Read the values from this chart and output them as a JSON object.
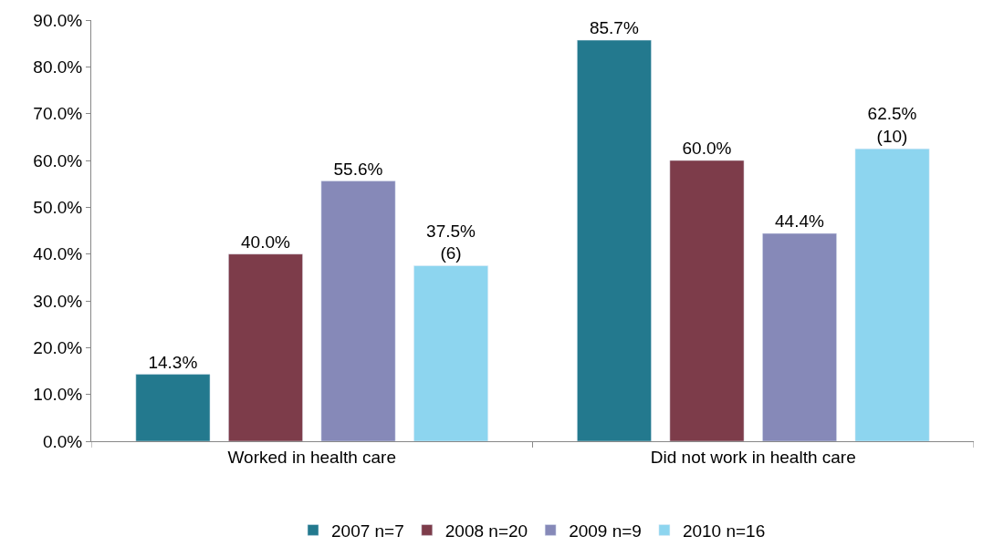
{
  "chart_data": {
    "type": "bar",
    "categories": [
      "Worked in health care",
      "Did not work in health care"
    ],
    "series": [
      {
        "name": "2007 n=7",
        "color": "#23798e",
        "values": [
          14.3,
          85.7
        ],
        "value_labels": [
          "14.3%",
          "85.7%"
        ]
      },
      {
        "name": "2008 n=20",
        "color": "#7d3c4a",
        "values": [
          40.0,
          60.0
        ],
        "value_labels": [
          "40.0%",
          "60.0%"
        ]
      },
      {
        "name": "2009 n=9",
        "color": "#8689b8",
        "values": [
          55.6,
          44.4
        ],
        "value_labels": [
          "55.6%",
          "44.4%"
        ]
      },
      {
        "name": "2010 n=16",
        "color": "#8dd5ef",
        "values": [
          37.5,
          62.5
        ],
        "value_labels": [
          "37.5%\n(6)",
          "62.5%\n(10)"
        ]
      }
    ],
    "ylim": [
      0,
      90
    ],
    "yticks": [
      {
        "value": 0,
        "label": "0.0%"
      },
      {
        "value": 10,
        "label": "10.0%"
      },
      {
        "value": 20,
        "label": "20.0%"
      },
      {
        "value": 30,
        "label": "30.0%"
      },
      {
        "value": 40,
        "label": "40.0%"
      },
      {
        "value": 50,
        "label": "50.0%"
      },
      {
        "value": 60,
        "label": "60.0%"
      },
      {
        "value": 70,
        "label": "70.0%"
      },
      {
        "value": 80,
        "label": "80.0%"
      },
      {
        "value": 90,
        "label": "90.0%"
      }
    ],
    "legend": "bottom"
  }
}
